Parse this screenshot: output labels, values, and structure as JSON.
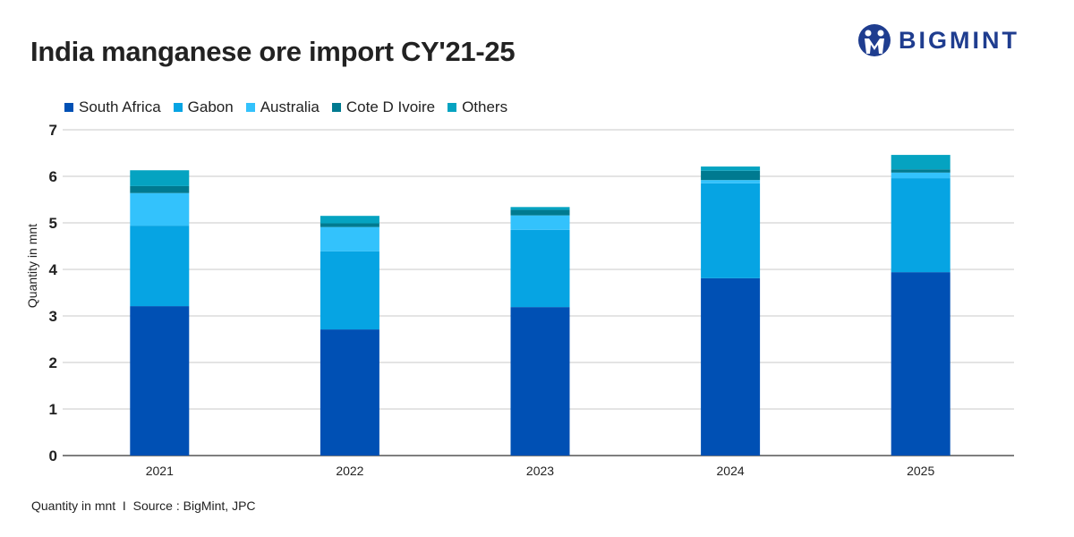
{
  "title": "India manganese ore import CY'21-25",
  "logo": {
    "text": "BIGMINT",
    "color": "#1f3d8f"
  },
  "footer": "Quantity in mnt  I  Source : BigMint, JPC",
  "chart_data": {
    "type": "bar",
    "stacked": true,
    "title": "India manganese ore import CY'21-25",
    "xlabel": "",
    "ylabel": "Quantity in mnt",
    "ylim": [
      0,
      7
    ],
    "yticks": [
      0,
      1,
      2,
      3,
      4,
      5,
      6,
      7
    ],
    "grid": true,
    "legend_position": "top-left",
    "categories": [
      "2021",
      "2022",
      "2023",
      "2024",
      "2025"
    ],
    "series": [
      {
        "name": "South Africa",
        "color": "#0050b4",
        "values": [
          3.21,
          2.71,
          3.19,
          3.81,
          3.94
        ]
      },
      {
        "name": "Gabon",
        "color": "#06a4e3",
        "values": [
          1.73,
          1.68,
          1.66,
          2.04,
          2.02
        ]
      },
      {
        "name": "Australia",
        "color": "#33c2fc",
        "values": [
          0.7,
          0.52,
          0.31,
          0.07,
          0.12
        ]
      },
      {
        "name": "Cote D Ivoire",
        "color": "#007a90",
        "values": [
          0.15,
          0.08,
          0.12,
          0.2,
          0.07
        ]
      },
      {
        "name": "Others",
        "color": "#05a3c1",
        "values": [
          0.34,
          0.16,
          0.06,
          0.09,
          0.31
        ]
      }
    ]
  }
}
